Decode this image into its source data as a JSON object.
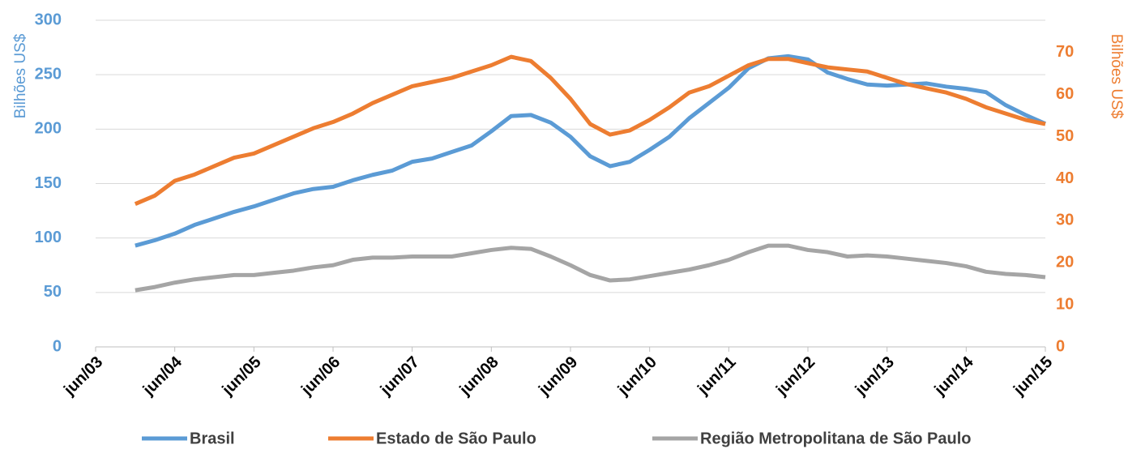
{
  "chart_data": {
    "type": "line",
    "y_label": "Bilhões US$",
    "y2_label": "Bilhões US$",
    "x": [
      "2003-12",
      "2004-03",
      "2004-06",
      "2004-09",
      "2004-12",
      "2005-03",
      "2005-06",
      "2005-09",
      "2005-12",
      "2006-03",
      "2006-06",
      "2006-09",
      "2006-12",
      "2007-03",
      "2007-06",
      "2007-09",
      "2007-12",
      "2008-03",
      "2008-06",
      "2008-09",
      "2008-12",
      "2009-03",
      "2009-06",
      "2009-09",
      "2009-12",
      "2010-03",
      "2010-06",
      "2010-09",
      "2010-12",
      "2011-03",
      "2011-06",
      "2011-09",
      "2011-12",
      "2012-03",
      "2012-06",
      "2012-09",
      "2012-12",
      "2013-03",
      "2013-06",
      "2013-09",
      "2013-12",
      "2014-03",
      "2014-06",
      "2014-09",
      "2014-12",
      "2015-03",
      "2015-06"
    ],
    "series": [
      {
        "name": "Brasil",
        "color": "#5b9bd5",
        "axis": "y",
        "values": [
          93,
          98,
          104,
          112,
          118,
          124,
          129,
          135,
          141,
          145,
          147,
          153,
          158,
          162,
          170,
          173,
          179,
          185,
          198,
          212,
          213,
          206,
          193,
          175,
          166,
          170,
          181,
          193,
          210,
          224,
          238,
          256,
          265,
          267,
          264,
          252,
          246,
          241,
          240,
          241,
          242,
          239,
          237,
          234,
          222,
          213,
          205
        ]
      },
      {
        "name": "Estado de São Paulo",
        "color": "#ed7d31",
        "axis": "y2",
        "values": [
          34,
          36,
          39.5,
          41,
          43,
          45,
          46,
          48,
          50,
          52,
          53.5,
          55.5,
          58,
          60,
          62,
          63,
          64,
          65.5,
          67,
          69,
          68,
          64,
          59,
          53,
          50.5,
          51.5,
          54,
          57,
          60.5,
          62,
          64.5,
          67,
          68.5,
          68.5,
          67.5,
          66.5,
          66,
          65.5,
          64,
          62.5,
          61.5,
          60.5,
          59,
          57,
          55.5,
          54,
          53
        ]
      },
      {
        "name": "Região Metropolitana de São Paulo",
        "color": "#a5a5a5",
        "axis": "y",
        "values": [
          52,
          55,
          59,
          62,
          64,
          66,
          66,
          68,
          70,
          73,
          75,
          80,
          82,
          82,
          83,
          83,
          83,
          86,
          89,
          91,
          90,
          83,
          75,
          66,
          61,
          62,
          65,
          68,
          71,
          75,
          80,
          87,
          93,
          93,
          89,
          87,
          83,
          84,
          83,
          81,
          79,
          77,
          74,
          69,
          67,
          66,
          64
        ]
      }
    ],
    "xlim": [
      "2003-06",
      "2015-06"
    ],
    "xticks": [
      {
        "value": "2003-06",
        "label": "jun/03"
      },
      {
        "value": "2004-06",
        "label": "jun/04"
      },
      {
        "value": "2005-06",
        "label": "jun/05"
      },
      {
        "value": "2006-06",
        "label": "jun/06"
      },
      {
        "value": "2007-06",
        "label": "jun/07"
      },
      {
        "value": "2008-06",
        "label": "jun/08"
      },
      {
        "value": "2009-06",
        "label": "jun/09"
      },
      {
        "value": "2010-06",
        "label": "jun/10"
      },
      {
        "value": "2011-06",
        "label": "jun/11"
      },
      {
        "value": "2012-06",
        "label": "jun/12"
      },
      {
        "value": "2013-06",
        "label": "jun/13"
      },
      {
        "value": "2014-06",
        "label": "jun/14"
      },
      {
        "value": "2015-06",
        "label": "jun/15"
      }
    ],
    "ylim": [
      0,
      300
    ],
    "yticks": [
      0,
      50,
      100,
      150,
      200,
      250,
      300
    ],
    "y2lim": [
      0,
      77.7
    ],
    "y2ticks": [
      0,
      10,
      20,
      30,
      40,
      50,
      60,
      70
    ],
    "grid": true,
    "legend": "bottom"
  }
}
